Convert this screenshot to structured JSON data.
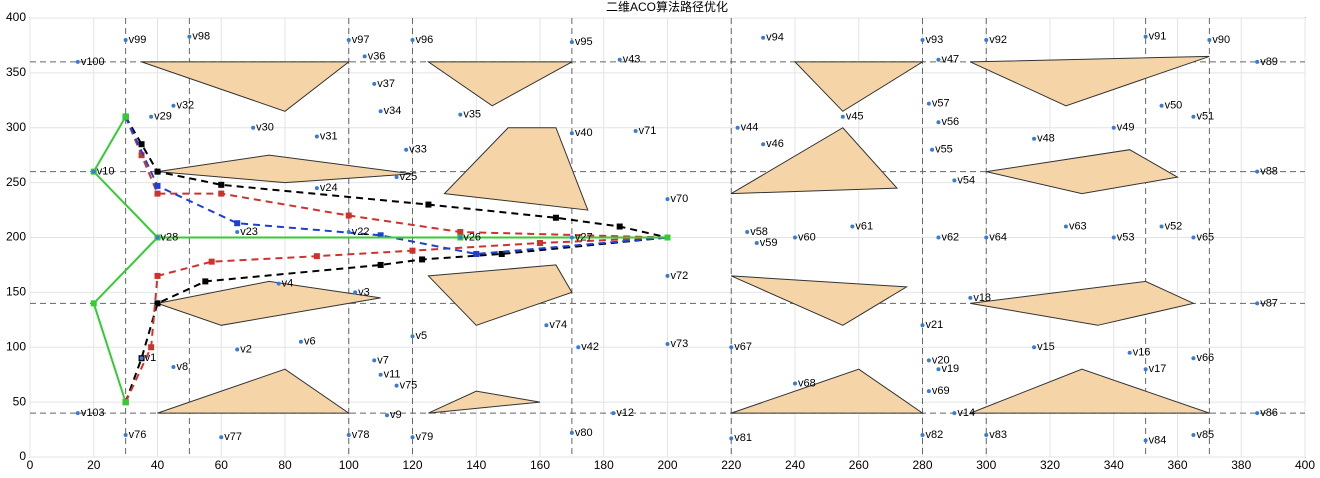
{
  "chart_data": {
    "type": "network",
    "title": "二维ACO算法路径优化",
    "xlim": [
      0,
      400
    ],
    "ylim": [
      0,
      400
    ],
    "xticks": [
      0,
      20,
      40,
      60,
      80,
      100,
      120,
      140,
      160,
      180,
      200,
      220,
      240,
      260,
      280,
      300,
      320,
      340,
      360,
      380,
      400
    ],
    "yticks": [
      0,
      50,
      100,
      150,
      200,
      250,
      300,
      350,
      400
    ],
    "grid": true,
    "reference_lines": {
      "x": [
        30,
        50,
        100,
        120,
        170,
        220,
        280,
        300,
        350,
        370
      ],
      "y": [
        40,
        140,
        260,
        360
      ]
    },
    "obstacle_color": "#f5d5a8",
    "obstacles": [
      {
        "x": [
          35,
          100,
          80
        ],
        "y": [
          360,
          360,
          315
        ]
      },
      {
        "x": [
          125,
          170,
          145
        ],
        "y": [
          360,
          360,
          320
        ]
      },
      {
        "x": [
          240,
          280,
          255
        ],
        "y": [
          360,
          360,
          315
        ]
      },
      {
        "x": [
          295,
          370,
          325
        ],
        "y": [
          360,
          365,
          320
        ]
      },
      {
        "x": [
          40,
          75,
          120,
          80
        ],
        "y": [
          260,
          275,
          258,
          250
        ]
      },
      {
        "x": [
          130,
          175,
          165,
          150
        ],
        "y": [
          240,
          225,
          300,
          300
        ]
      },
      {
        "x": [
          220,
          255,
          272
        ],
        "y": [
          240,
          300,
          245
        ]
      },
      {
        "x": [
          300,
          345,
          360,
          330
        ],
        "y": [
          260,
          280,
          255,
          240
        ]
      },
      {
        "x": [
          40,
          75,
          110,
          60
        ],
        "y": [
          140,
          160,
          145,
          120
        ]
      },
      {
        "x": [
          125,
          165,
          170,
          140
        ],
        "y": [
          165,
          175,
          150,
          120
        ]
      },
      {
        "x": [
          220,
          275,
          255
        ],
        "y": [
          165,
          155,
          120
        ]
      },
      {
        "x": [
          295,
          350,
          365,
          335
        ],
        "y": [
          140,
          160,
          140,
          120
        ]
      },
      {
        "x": [
          40,
          80,
          100
        ],
        "y": [
          40,
          80,
          40
        ]
      },
      {
        "x": [
          125,
          140,
          160
        ],
        "y": [
          40,
          60,
          50
        ]
      },
      {
        "x": [
          220,
          260,
          280
        ],
        "y": [
          40,
          80,
          40
        ]
      },
      {
        "x": [
          295,
          330,
          370
        ],
        "y": [
          40,
          80,
          40
        ]
      }
    ],
    "nodes": {
      "names": [
        "v100",
        "v99",
        "v98",
        "v97",
        "v96",
        "v95",
        "v94",
        "v93",
        "v92",
        "v91",
        "v90",
        "v89",
        "v36",
        "v43",
        "v47",
        "v37",
        "v57",
        "v32",
        "v29",
        "v34",
        "v35",
        "v30",
        "v31",
        "v40",
        "v71",
        "v44",
        "v45",
        "v46",
        "v56",
        "v48",
        "v49",
        "v50",
        "v51",
        "v33",
        "v55",
        "v10",
        "v25",
        "v24",
        "v88",
        "v54",
        "v70",
        "v28",
        "v23",
        "v22",
        "v26",
        "v27",
        "v58",
        "v59",
        "v60",
        "v61",
        "v62",
        "v64",
        "v63",
        "v53",
        "v52",
        "v65",
        "v72",
        "v4",
        "v3",
        "v18",
        "v87",
        "v1",
        "v8",
        "v2",
        "v6",
        "v5",
        "v7",
        "v11",
        "v74",
        "v42",
        "v73",
        "v67",
        "v21",
        "v15",
        "v16",
        "v66",
        "v17",
        "v20",
        "v19",
        "v68",
        "v69",
        "v75",
        "v9",
        "v12",
        "v14",
        "v86",
        "v103",
        "v76",
        "v77",
        "v78",
        "v79",
        "v80",
        "v81",
        "v82",
        "v83",
        "v84",
        "v85"
      ],
      "x": [
        15,
        30,
        50,
        100,
        120,
        170,
        230,
        280,
        300,
        350,
        370,
        385,
        105,
        185,
        285,
        108,
        282,
        45,
        38,
        110,
        135,
        70,
        90,
        170,
        190,
        222,
        255,
        230,
        285,
        315,
        340,
        355,
        365,
        118,
        283,
        20,
        115,
        90,
        385,
        290,
        200,
        40,
        65,
        100,
        135,
        170,
        225,
        228,
        240,
        258,
        285,
        300,
        325,
        340,
        355,
        365,
        200,
        78,
        102,
        295,
        385,
        35,
        45,
        65,
        85,
        120,
        108,
        110,
        162,
        172,
        200,
        220,
        280,
        315,
        345,
        365,
        350,
        282,
        285,
        240,
        282,
        115,
        112,
        183,
        290,
        385,
        15,
        30,
        60,
        100,
        120,
        170,
        220,
        280,
        300,
        350,
        365
      ],
      "y": [
        360,
        380,
        383,
        380,
        380,
        378,
        382,
        380,
        380,
        383,
        380,
        360,
        365,
        362,
        362,
        340,
        322,
        320,
        310,
        315,
        312,
        300,
        292,
        295,
        297,
        300,
        310,
        285,
        305,
        290,
        300,
        320,
        310,
        280,
        280,
        260,
        255,
        245,
        260,
        252,
        235,
        200,
        205,
        205,
        200,
        200,
        205,
        195,
        200,
        210,
        200,
        200,
        210,
        200,
        210,
        200,
        165,
        158,
        150,
        145,
        140,
        90,
        82,
        98,
        105,
        110,
        88,
        75,
        120,
        100,
        103,
        100,
        120,
        100,
        95,
        90,
        80,
        88,
        80,
        67,
        60,
        65,
        38,
        40,
        40,
        40,
        40,
        20,
        18,
        20,
        18,
        22,
        17,
        20,
        20,
        15,
        20
      ]
    },
    "series": [
      {
        "color": "#000000",
        "x": [
          30,
          35,
          40,
          60,
          125,
          165,
          185,
          200
        ],
        "y": [
          310,
          285,
          260,
          248,
          230,
          218,
          210,
          200
        ]
      },
      {
        "color": "#000000",
        "x": [
          30,
          35,
          40,
          55,
          110,
          123,
          148,
          200
        ],
        "y": [
          50,
          90,
          140,
          160,
          175,
          180,
          185,
          200
        ]
      },
      {
        "color": "#d0312d",
        "x": [
          30,
          35,
          40,
          60,
          100,
          135,
          200
        ],
        "y": [
          310,
          275,
          240,
          240,
          220,
          205,
          200
        ]
      },
      {
        "color": "#d0312d",
        "x": [
          30,
          38,
          40,
          57,
          90,
          120,
          160,
          200
        ],
        "y": [
          50,
          100,
          165,
          178,
          183,
          188,
          195,
          200
        ]
      },
      {
        "color": "#1f3fd0",
        "x": [
          30,
          40,
          65,
          110,
          140,
          200
        ],
        "y": [
          310,
          247,
          213,
          202,
          185,
          200
        ]
      },
      {
        "color": "#33cc33",
        "x": [
          30,
          20,
          40,
          135,
          200
        ],
        "y": [
          310,
          260,
          200,
          200,
          200
        ]
      },
      {
        "color": "#33cc33",
        "x": [
          30,
          20,
          40
        ],
        "y": [
          50,
          140,
          200
        ]
      }
    ]
  }
}
